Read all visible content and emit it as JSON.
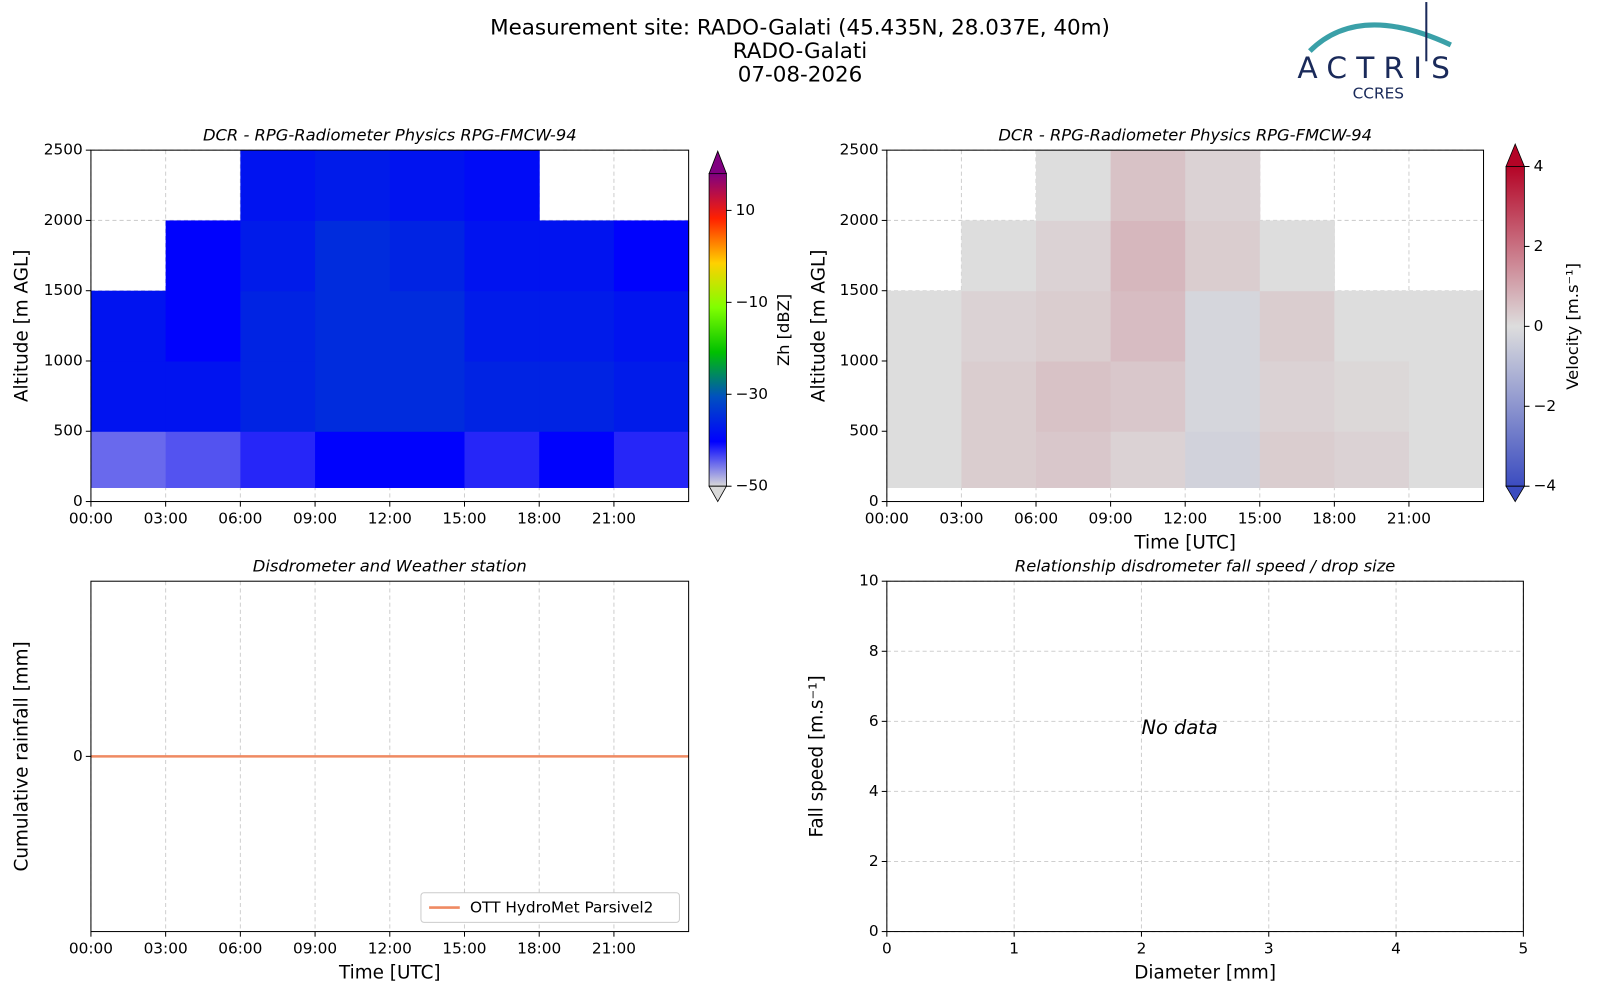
{
  "header": {
    "title": "Measurement site: RADO-Galati (45.435N, 28.037E, 40m)",
    "subtitle": "RADO-Galati",
    "date": "07-08-2026",
    "logo": "ACTRIS",
    "logo_sub": "CCRES"
  },
  "chart_data": [
    {
      "type": "heatmap",
      "title": "DCR - RPG-Radiometer Physics RPG-FMCW-94",
      "ylabel": "Altitude [m AGL]",
      "colorbar_label": "Zh [dBZ]",
      "xlim": [
        0,
        24
      ],
      "xticks": [
        {
          "value": 0,
          "label": "00:00"
        },
        {
          "value": 3,
          "label": "03:00"
        },
        {
          "value": 6,
          "label": "06:00"
        },
        {
          "value": 9,
          "label": "09:00"
        },
        {
          "value": 12,
          "label": "12:00"
        },
        {
          "value": 15,
          "label": "15:00"
        },
        {
          "value": 18,
          "label": "18:00"
        },
        {
          "value": 21,
          "label": "21:00"
        }
      ],
      "ylim": [
        0,
        2500
      ],
      "yticks": [
        0,
        500,
        1000,
        1500,
        2000,
        2500
      ],
      "grid": true,
      "x_edges": [
        0,
        3,
        6,
        9,
        12,
        15,
        18,
        21,
        24
      ],
      "y_edges": [
        100,
        500,
        1000,
        1500,
        2000,
        2500
      ],
      "z": [
        [
          -45,
          -44,
          -42,
          -40,
          -40,
          -42,
          -40,
          -42
        ],
        [
          -38,
          -38,
          -36,
          -35,
          -35,
          -36,
          -36,
          -37
        ],
        [
          -38,
          -40,
          -36,
          -35,
          -35,
          -37,
          -37,
          -38
        ],
        [
          null,
          -40,
          -37,
          -35,
          -36,
          -38,
          -38,
          -40
        ],
        [
          null,
          null,
          -38,
          -37,
          -38,
          -39,
          null,
          null
        ]
      ],
      "clim": [
        -50,
        18
      ],
      "colormap": [
        "#d9d9d9",
        "#0000ff",
        "#0050c0",
        "#00c000",
        "#80ff00",
        "#ffd000",
        "#ff2000",
        "#800080"
      ],
      "cticks": [
        {
          "value": -50,
          "label": "−50"
        },
        {
          "value": -30,
          "label": "−30"
        },
        {
          "value": -10,
          "label": "−10"
        },
        10
      ]
    },
    {
      "type": "heatmap",
      "title": "DCR - RPG-Radiometer Physics RPG-FMCW-94",
      "xlabel": "Time [UTC]",
      "ylabel": "Altitude [m AGL]",
      "colorbar_label": "Velocity [m.s⁻¹]",
      "xlim": [
        0,
        24
      ],
      "xticks": [
        {
          "value": 0,
          "label": "00:00"
        },
        {
          "value": 3,
          "label": "03:00"
        },
        {
          "value": 6,
          "label": "06:00"
        },
        {
          "value": 9,
          "label": "09:00"
        },
        {
          "value": 12,
          "label": "12:00"
        },
        {
          "value": 15,
          "label": "15:00"
        },
        {
          "value": 18,
          "label": "18:00"
        },
        {
          "value": 21,
          "label": "21:00"
        }
      ],
      "ylim": [
        0,
        2500
      ],
      "yticks": [
        0,
        500,
        1000,
        1500,
        2000,
        2500
      ],
      "grid": true,
      "x_edges": [
        0,
        3,
        6,
        9,
        12,
        15,
        18,
        21,
        24
      ],
      "y_edges": [
        100,
        500,
        1000,
        1500,
        2000,
        2500
      ],
      "z": [
        [
          0,
          0.3,
          0.4,
          0.2,
          -0.3,
          0.3,
          0.2,
          0
        ],
        [
          0,
          0.3,
          0.5,
          0.4,
          -0.2,
          0.2,
          0.1,
          0
        ],
        [
          0,
          0.2,
          0.3,
          0.6,
          -0.2,
          0.3,
          0,
          0
        ],
        [
          null,
          0,
          0.2,
          0.7,
          0.3,
          0,
          null,
          null
        ],
        [
          null,
          null,
          0,
          0.5,
          0.2,
          null,
          null,
          null
        ]
      ],
      "clim": [
        -4,
        4
      ],
      "colormap": [
        "#3b4cc0",
        "#dddddd",
        "#b40426"
      ],
      "cticks": [
        {
          "value": -4,
          "label": "−4"
        },
        {
          "value": -2,
          "label": "−2"
        },
        0,
        2,
        4
      ]
    },
    {
      "type": "line",
      "title": "Disdrometer and Weather station",
      "xlabel": "Time [UTC]",
      "ylabel": "Cumulative rainfall [mm]",
      "xlim": [
        0,
        24
      ],
      "xticks": [
        {
          "value": 0,
          "label": "00:00"
        },
        {
          "value": 3,
          "label": "03:00"
        },
        {
          "value": 6,
          "label": "06:00"
        },
        {
          "value": 9,
          "label": "09:00"
        },
        {
          "value": 12,
          "label": "12:00"
        },
        {
          "value": 15,
          "label": "15:00"
        },
        {
          "value": 18,
          "label": "18:00"
        },
        {
          "value": 21,
          "label": "21:00"
        }
      ],
      "ylim": [
        -1,
        1
      ],
      "yticks": [
        0
      ],
      "grid": true,
      "legend": "lower right",
      "x": [
        0,
        24
      ],
      "series": [
        {
          "name": "OTT HydroMet Parsivel2",
          "color": "#ef8a62",
          "values": [
            0,
            0
          ]
        }
      ]
    },
    {
      "type": "scatter",
      "title": "Relationship disdrometer fall speed / drop size",
      "xlabel": "Diameter [mm]",
      "ylabel": "Fall speed [m.s⁻¹]",
      "xlim": [
        0,
        5
      ],
      "xticks": [
        0,
        1,
        2,
        3,
        4,
        5
      ],
      "ylim": [
        0,
        10
      ],
      "yticks": [
        0,
        2,
        4,
        6,
        8,
        10
      ],
      "grid": true,
      "annotation": "No data"
    }
  ]
}
